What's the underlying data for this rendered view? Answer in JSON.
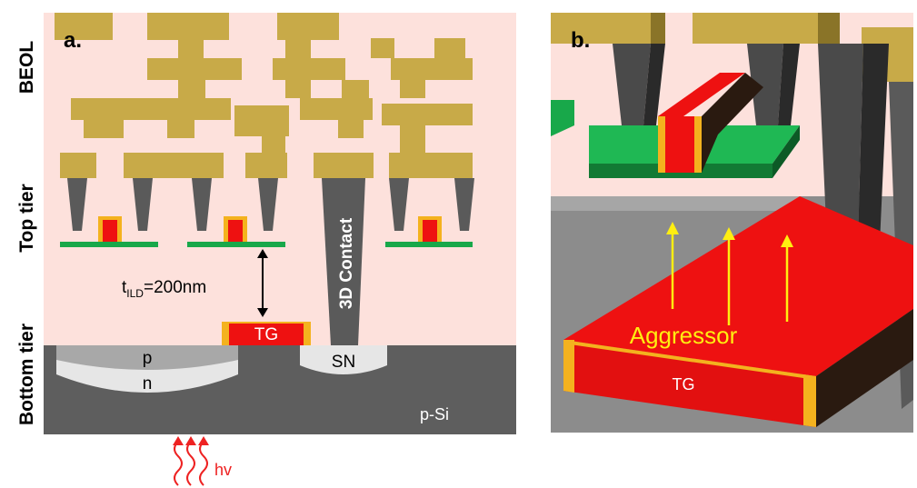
{
  "panel_a": {
    "label": "a.",
    "tier_labels": {
      "beol": "BEOL",
      "top": "Top tier",
      "bottom": "Bottom tier"
    },
    "gate_label": "TG",
    "contact_label": "3D Contact",
    "ild_prefix": "t",
    "ild_subscript": "ILD",
    "ild_value": "=200nm",
    "well_p": "p",
    "well_n": "n",
    "sn_label": "SN",
    "substrate_label": "p-Si",
    "light_label": "hv"
  },
  "panel_b": {
    "label": "b.",
    "aggressor_label": "Aggressor",
    "gate_label": "TG"
  },
  "colors": {
    "oxide_pink": "#fde1dc",
    "metal_gold": "#c8aa48",
    "silicon_gray": "#5e5e5e",
    "active_green": "#18a84a",
    "gate_red": "#ee1111",
    "spacer_orange": "#f4b21e",
    "arrow_yellow": "#ffee11",
    "light_red": "#ee2222"
  }
}
